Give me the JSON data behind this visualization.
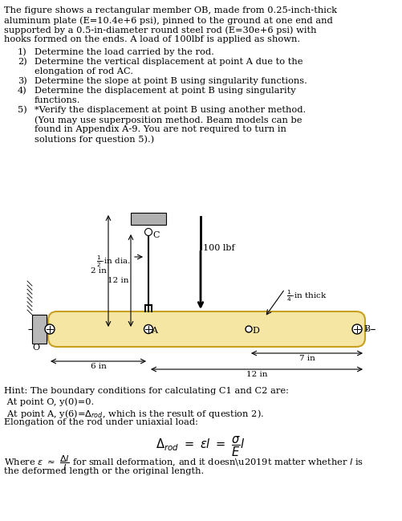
{
  "beam_color": "#f5e6a3",
  "beam_border": "#c8a020",
  "wall_color": "#aaaaaa",
  "bg_color": "#ffffff",
  "title_lines": [
    "The figure shows a rectangular member OB, made from 0.25-inch-thick",
    "aluminum plate (E=10.4e+6 psi), pinned to the ground at one end and",
    "supported by a 0.5-in-diameter round steel rod (E=30e+6 psi) with",
    "hooks formed on the ends. A load of 100lbf is applied as shown."
  ],
  "item_numbers": [
    "1)",
    "2)",
    "3)",
    "4)",
    "5)"
  ],
  "item_first_lines": [
    "Determine the load carried by the rod.",
    "Determine the vertical displacement at point A due to the",
    "Determine the slope at point B using singularity functions.",
    "Determine the displacement at point B using singularity",
    "*Verify the displacement at point B using another method."
  ],
  "item_cont_lines": [
    [],
    [
      "elongation of rod AC."
    ],
    [],
    [
      "functions."
    ],
    [
      "(You may use superposition method. Beam models can be",
      "found in Appendix A-9. You are not required to turn in",
      "solutions for question 5).)"
    ]
  ],
  "hint_line1": "Hint: The boundary conditions for calculating C1 and C2 are:",
  "hint_line2": " At point O, y(0)=0.",
  "hint_line3": " At point A, y(6)=Δ",
  "hint_line3b": ", which is the result of question 2).",
  "hint_line4": "Elongation of the rod under uniaxial load:",
  "hint_line5a": "Where ε ≈ ",
  "hint_line5b": " for small deformation, and it doesn’t matter whether ",
  "hint_line5c": " is",
  "hint_line6": "the deformed length or the original length."
}
